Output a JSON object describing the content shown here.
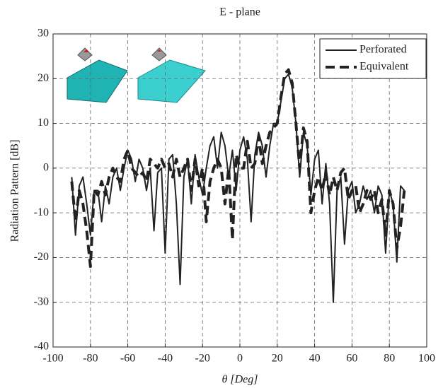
{
  "chart_data": {
    "type": "line",
    "title": "E - plane",
    "x_label": "θ [Deg]",
    "y_label": "Radiation Pattern [dB]",
    "x": [
      -90,
      -88,
      -86,
      -84,
      -82,
      -80,
      -78,
      -76,
      -74,
      -72,
      -70,
      -68,
      -66,
      -64,
      -62,
      -60,
      -58,
      -56,
      -54,
      -52,
      -50,
      -48,
      -46,
      -44,
      -42,
      -40,
      -38,
      -36,
      -34,
      -32,
      -30,
      -28,
      -26,
      -24,
      -22,
      -20,
      -18,
      -16,
      -14,
      -12,
      -10,
      -8,
      -6,
      -4,
      -2,
      0,
      2,
      4,
      6,
      8,
      10,
      12,
      14,
      16,
      18,
      20,
      22,
      24,
      26,
      28,
      30,
      32,
      34,
      36,
      38,
      40,
      42,
      44,
      46,
      48,
      50,
      52,
      54,
      56,
      58,
      60,
      62,
      64,
      66,
      68,
      70,
      72,
      74,
      76,
      78,
      80,
      82,
      84,
      86,
      88
    ],
    "series": [
      {
        "name": "Perforated",
        "color": "#222222",
        "dash": "solid",
        "values": [
          -2,
          -15,
          -4,
          -2,
          -8,
          -15,
          -5,
          -5,
          -12,
          -4,
          -8,
          -2,
          0,
          -5,
          0,
          4,
          2,
          -3,
          2,
          0,
          -5,
          0,
          -14,
          -1,
          0,
          -19,
          2,
          3,
          -8,
          -26,
          -2,
          2,
          -8,
          3,
          -2,
          -6,
          0,
          5,
          7,
          0,
          8,
          5,
          -2,
          4,
          -5,
          4,
          7,
          2,
          -12,
          3,
          8,
          5,
          -2,
          5,
          10,
          10,
          15,
          20,
          21,
          18,
          10,
          -2,
          8,
          5,
          -6,
          2,
          4,
          -8,
          1,
          -8,
          -30,
          -5,
          -2,
          -17,
          -5,
          -3,
          -10,
          -8,
          -4,
          -7,
          -5,
          -10,
          -4,
          -6,
          -19,
          -5,
          -8,
          -21,
          -4,
          -5
        ]
      },
      {
        "name": "Equivalent",
        "color": "#222222",
        "dash": "dashed",
        "values": [
          -3,
          -12,
          -5,
          -8,
          -14,
          -22,
          -5,
          -6,
          -3,
          -6,
          -2,
          0,
          -2,
          -3,
          2,
          4,
          0,
          -1,
          -2,
          -1,
          -3,
          2,
          1,
          0,
          2,
          0,
          1,
          -2,
          2,
          -2,
          0,
          2,
          -5,
          2,
          -4,
          0,
          -12,
          -3,
          0,
          2,
          0,
          -8,
          0,
          -16,
          3,
          0,
          0,
          6,
          0,
          1,
          7,
          1,
          5,
          8,
          9,
          10,
          16,
          21,
          22,
          19,
          10,
          0,
          9,
          6,
          -10,
          -5,
          -2,
          -5,
          -1,
          -6,
          -2,
          -5,
          -1,
          0,
          -7,
          -5,
          -4,
          -10,
          -8,
          -5,
          -7,
          -5,
          -10,
          -7,
          -15,
          -5,
          -8,
          -18,
          -13,
          -5
        ]
      }
    ],
    "xlim": [
      -100,
      100
    ],
    "ylim": [
      -40,
      30
    ],
    "xticks": [
      -100,
      -80,
      -60,
      -40,
      -20,
      0,
      20,
      40,
      60,
      80,
      100
    ],
    "yticks": [
      -40,
      -30,
      -20,
      -10,
      0,
      10,
      20,
      30
    ],
    "grid": true,
    "legend": "upper right"
  }
}
